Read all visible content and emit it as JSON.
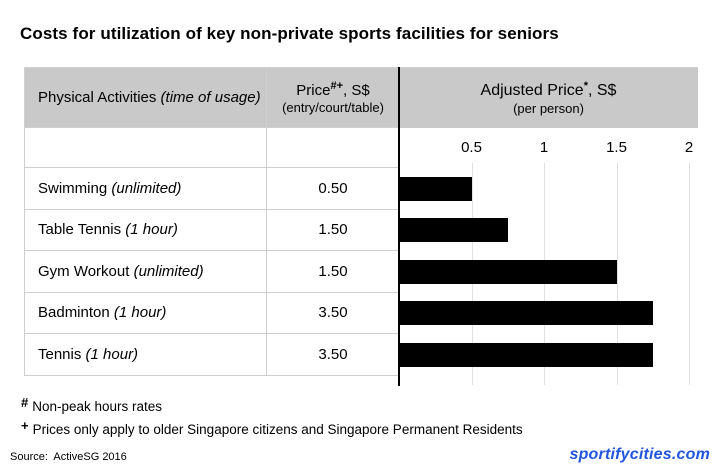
{
  "title": "Costs for utilization of key non-private sports facilities for seniors",
  "table": {
    "headers": {
      "activities": {
        "label": "Physical Activities",
        "note": "(time of usage)"
      },
      "price": {
        "label": "Price",
        "sup": "#+",
        "suffix": ", S$",
        "sub": "(entry/court/table)"
      },
      "adjusted": {
        "label": "Adjusted Price",
        "sup": "*",
        "suffix": ", S$",
        "sub": "(per person)"
      }
    },
    "rows": [
      {
        "activity": "Swimming",
        "usage": "(unlimited)",
        "price": "0.50",
        "adjusted": 0.5
      },
      {
        "activity": "Table Tennis",
        "usage": "(1 hour)",
        "price": "1.50",
        "adjusted": 0.75
      },
      {
        "activity": "Gym Workout",
        "usage": "(unlimited)",
        "price": "1.50",
        "adjusted": 1.5
      },
      {
        "activity": "Badminton",
        "usage": "(1 hour)",
        "price": "3.50",
        "adjusted": 1.75
      },
      {
        "activity": "Tennis",
        "usage": "(1 hour)",
        "price": "3.50",
        "adjusted": 1.75
      }
    ]
  },
  "chart_data": {
    "type": "bar",
    "orientation": "horizontal",
    "title": "Adjusted Price*, S$ (per person)",
    "categories": [
      "Swimming (unlimited)",
      "Table Tennis (1 hour)",
      "Gym Workout (unlimited)",
      "Badminton (1 hour)",
      "Tennis (1 hour)"
    ],
    "values": [
      0.5,
      0.75,
      1.5,
      1.75,
      1.75
    ],
    "listed_prices_sgd": [
      0.5,
      1.5,
      1.5,
      3.5,
      3.5
    ],
    "xticks": [
      0.5,
      1,
      1.5,
      2
    ],
    "xlim": [
      0,
      2
    ],
    "grid": true,
    "legend": false,
    "bar_color": "#000000"
  },
  "footnotes": [
    {
      "marker": "#",
      "text": "Non-peak hours rates"
    },
    {
      "marker": "+",
      "text": "Prices only apply to older Singapore citizens and Singapore Permanent Residents"
    }
  ],
  "source": "Source:  ActiveSG 2016",
  "watermark": "sportifycities.com",
  "colors": {
    "header_bg": "#c9c9c9",
    "border": "#cfcfcf",
    "gridline": "#e0e0e0",
    "bar": "#000000",
    "watermark_blue": "#2156dd"
  }
}
